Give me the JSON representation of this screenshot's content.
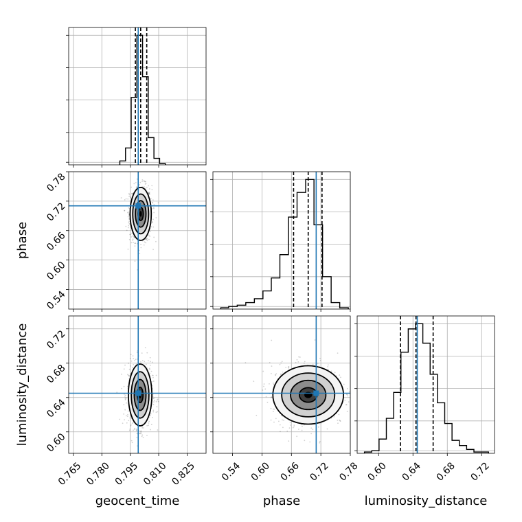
{
  "chart_data": {
    "type": "corner",
    "parameters": [
      "geocent_time",
      "phase",
      "luminosity_distance"
    ],
    "axes": {
      "geocent_time": {
        "range": [
          0.7625,
          0.835
        ],
        "ticks": [
          0.765,
          0.78,
          0.795,
          0.81,
          0.825
        ],
        "tick_labels": [
          "0.765",
          "0.780",
          "0.795",
          "0.810",
          "0.825"
        ]
      },
      "phase": {
        "range": [
          0.5,
          0.78
        ],
        "ticks": [
          0.54,
          0.6,
          0.66,
          0.72,
          0.78
        ],
        "tick_labels": [
          "0.54",
          "0.60",
          "0.66",
          "0.72",
          "0.78"
        ]
      },
      "luminosity_distance": {
        "range": [
          0.575,
          0.735
        ],
        "ticks": [
          0.6,
          0.64,
          0.68,
          0.72
        ],
        "tick_labels": [
          "0.60",
          "0.64",
          "0.68",
          "0.72"
        ]
      }
    },
    "truths": {
      "geocent_time": 0.7992,
      "phase": 0.7105,
      "luminosity_distance": 0.645
    },
    "quantiles": {
      "geocent_time": [
        0.7977,
        0.8005,
        0.8037
      ],
      "phase": [
        0.6644,
        0.6942,
        0.7224
      ],
      "luminosity_distance": [
        0.6255,
        0.6435,
        0.6635
      ]
    },
    "histograms": {
      "geocent_time": {
        "bin_edges": [
          0.7895,
          0.7925,
          0.7955,
          0.7985,
          0.8015,
          0.8045,
          0.8075,
          0.8105,
          0.8135
        ],
        "counts": [
          0.03,
          0.13,
          0.52,
          1.0,
          0.68,
          0.21,
          0.05,
          0.01
        ]
      },
      "phase": {
        "bin_edges": [
          0.516,
          0.532,
          0.5495,
          0.567,
          0.5845,
          0.602,
          0.619,
          0.6365,
          0.654,
          0.6715,
          0.689,
          0.706,
          0.7235,
          0.741,
          0.7585,
          0.776
        ],
        "counts": [
          0.01,
          0.02,
          0.03,
          0.05,
          0.08,
          0.14,
          0.24,
          0.42,
          0.71,
          0.9,
          1.0,
          0.65,
          0.25,
          0.05,
          0.01
        ]
      },
      "luminosity_distance": {
        "bin_edges": [
          0.5835,
          0.592,
          0.6005,
          0.609,
          0.6175,
          0.626,
          0.6345,
          0.643,
          0.6515,
          0.66,
          0.6685,
          0.677,
          0.6855,
          0.694,
          0.7025,
          0.711,
          0.7195,
          0.728
        ],
        "counts": [
          0.01,
          0.02,
          0.11,
          0.27,
          0.47,
          0.78,
          0.96,
          1.0,
          0.85,
          0.61,
          0.39,
          0.23,
          0.1,
          0.06,
          0.03,
          0.01,
          0.01
        ]
      }
    },
    "contour_panels": [
      {
        "x": "geocent_time",
        "y": "phase",
        "center": [
          0.8005,
          0.694
        ],
        "sigma": [
          0.0028,
          0.027
        ]
      },
      {
        "x": "geocent_time",
        "y": "luminosity_distance",
        "center": [
          0.8002,
          0.643
        ],
        "sigma": [
          0.0031,
          0.018
        ]
      },
      {
        "x": "phase",
        "y": "luminosity_distance",
        "center": [
          0.6942,
          0.643
        ],
        "sigma": [
          0.036,
          0.017
        ]
      }
    ],
    "contour_levels_sigma": [
      0.5,
      1.0,
      1.5,
      2.0
    ],
    "grid": true,
    "truth_color": "#1f77b4",
    "hist_color": "#000000"
  }
}
